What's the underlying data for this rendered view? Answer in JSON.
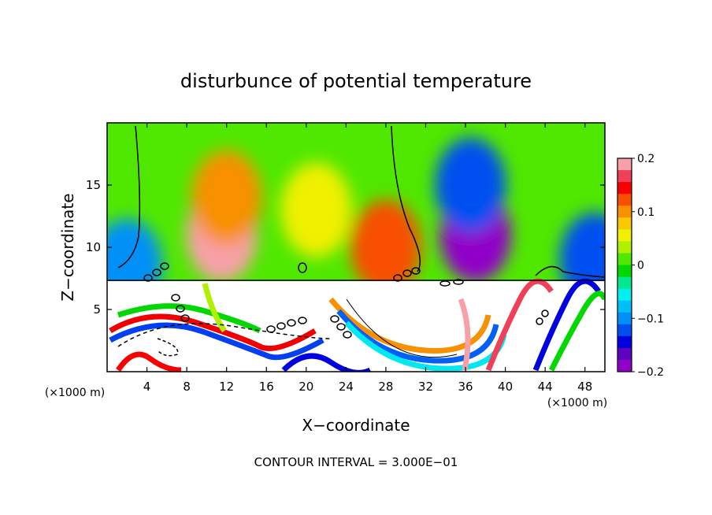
{
  "chart_data": {
    "type": "heatmap",
    "title": "disturbunce of potential temperature",
    "xlabel": "X−coordinate",
    "ylabel": "Z−coordinate",
    "x_unit_left": "(×1000 m)",
    "x_unit_right": "(×1000 m)",
    "xlim": [
      0,
      50
    ],
    "ylim": [
      0,
      20
    ],
    "xticks": [
      4,
      8,
      12,
      16,
      20,
      24,
      28,
      32,
      36,
      40,
      44,
      48
    ],
    "yticks": [
      5,
      10,
      15
    ],
    "colorbar": {
      "range": [
        -0.2,
        0.2
      ],
      "tick_values": [
        0.2,
        0.1,
        0,
        -0.1,
        -0.2
      ],
      "tick_labels": [
        "0.2",
        "0.1",
        "0",
        "−0.1",
        "−0.2"
      ],
      "colors": [
        "#f8a0a8",
        "#f04058",
        "#f80000",
        "#f85000",
        "#f89000",
        "#f8c800",
        "#f0f000",
        "#b0f000",
        "#50e800",
        "#00d800",
        "#00e890",
        "#00f0f0",
        "#00c0f8",
        "#0090f8",
        "#0050f0",
        "#0000e0",
        "#6000c0",
        "#9000c8"
      ]
    },
    "footer": "CONTOUR INTERVAL = 3.000E−01",
    "blobs": [
      {
        "x": 11.5,
        "z": 11.0,
        "value": 0.2
      },
      {
        "x": 12.0,
        "z": 14.0,
        "value": 0.1
      },
      {
        "x": 28.0,
        "z": 10.0,
        "value": 0.12
      },
      {
        "x": 21.0,
        "z": 13.0,
        "value": 0.05
      },
      {
        "x": 37.0,
        "z": 11.0,
        "value": -0.2
      },
      {
        "x": 36.5,
        "z": 15.0,
        "value": -0.12
      },
      {
        "x": 49.0,
        "z": 9.0,
        "value": -0.12
      },
      {
        "x": 2.0,
        "z": 8.5,
        "value": -0.1
      }
    ]
  }
}
